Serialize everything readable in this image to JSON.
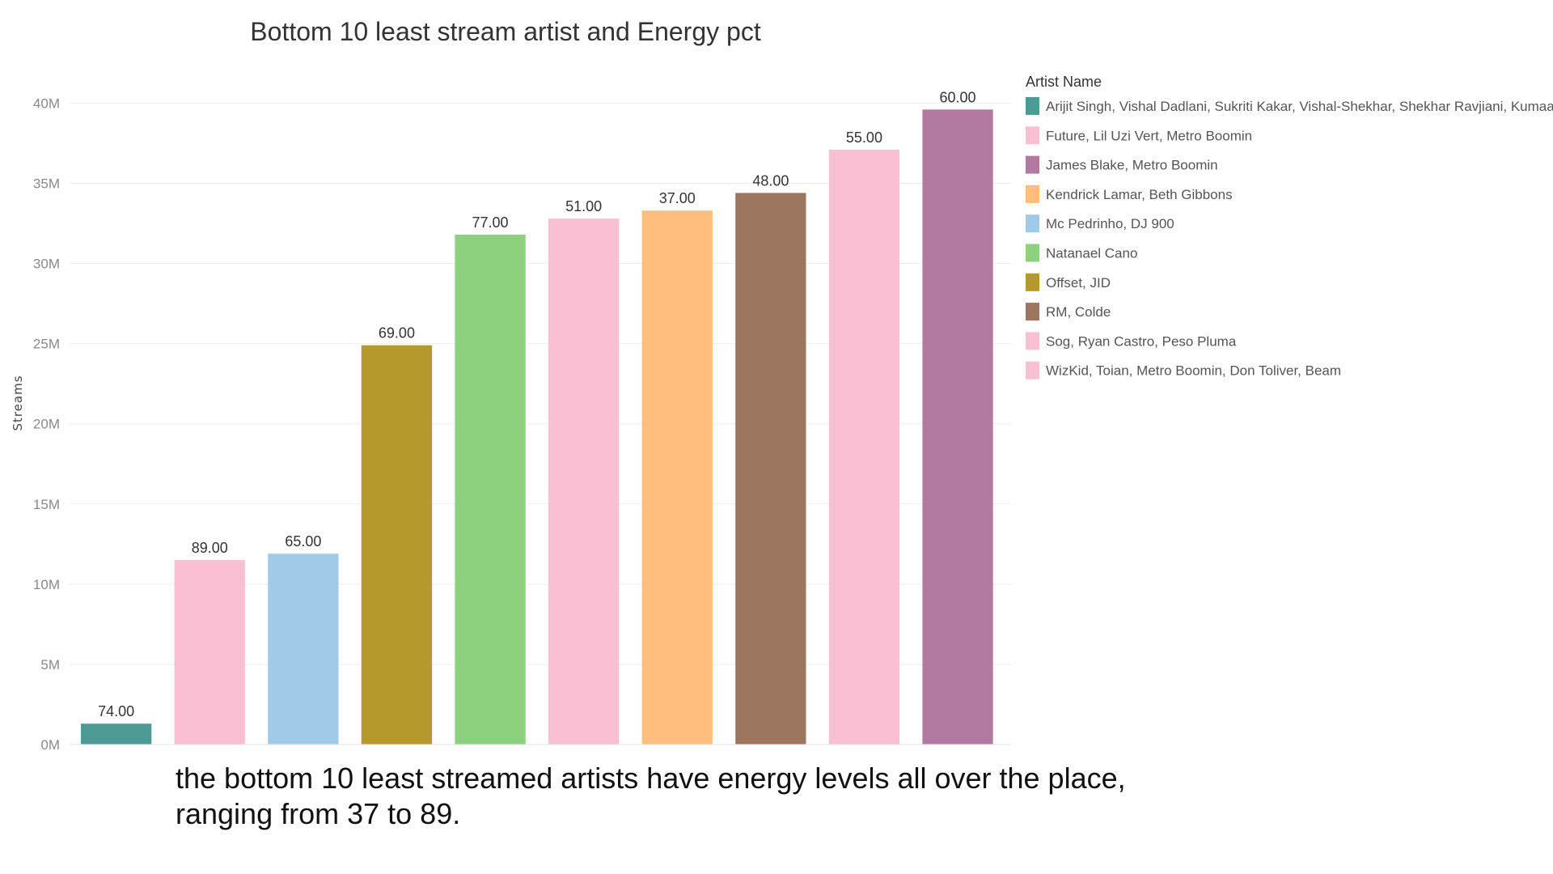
{
  "caption": {
    "line1": "the bottom 10 least streamed artists have energy levels all over the place,",
    "line2": "ranging from 37 to 89."
  },
  "chart_data": {
    "type": "bar",
    "title": "Bottom 10 least stream artist and Energy pct",
    "xlabel": "",
    "ylabel": "Streams",
    "ylim": [
      0,
      43000000
    ],
    "yticks": [
      0,
      5000000,
      10000000,
      15000000,
      20000000,
      25000000,
      30000000,
      35000000,
      40000000
    ],
    "ytick_labels": [
      "0M",
      "5M",
      "10M",
      "15M",
      "20M",
      "25M",
      "30M",
      "35M",
      "40M"
    ],
    "grid": true,
    "legend_title": "Artist Name",
    "legend_position": "right",
    "legend": [
      {
        "name": "Arijit Singh, Vishal Dadlani, Sukriti Kakar, Vishal-Shekhar, Shekhar Ravjiani, Kumaar",
        "color": "#4e9a95"
      },
      {
        "name": "Future, Lil Uzi Vert, Metro Boomin",
        "color": "#f9c0d3"
      },
      {
        "name": "James Blake, Metro Boomin",
        "color": "#b27aa1"
      },
      {
        "name": "Kendrick Lamar, Beth Gibbons",
        "color": "#ffbe7d"
      },
      {
        "name": "Mc Pedrinho, DJ 900",
        "color": "#a0cbe8"
      },
      {
        "name": "Natanael Cano",
        "color": "#8cd17d"
      },
      {
        "name": "Offset, JID",
        "color": "#b6992d"
      },
      {
        "name": "RM, Colde",
        "color": "#9d7660"
      },
      {
        "name": "Sog, Ryan Castro, Peso Pluma",
        "color": "#f9c0d3"
      },
      {
        "name": "WizKid, Toian, Metro Boomin, Don Toliver, Beam",
        "color": "#f9c0d3"
      }
    ],
    "bars": [
      {
        "artist": "Arijit Singh, Vishal Dadlani, Sukriti Kakar, Vishal-Shekhar, Shekhar Ravjiani, Kumaar",
        "streams": 1300000,
        "energy_label": "74.00",
        "color": "#4e9a95"
      },
      {
        "artist": "Future, Lil Uzi Vert, Metro Boomin",
        "streams": 11500000,
        "energy_label": "89.00",
        "color": "#f9c0d3"
      },
      {
        "artist": "Mc Pedrinho, DJ 900",
        "streams": 11900000,
        "energy_label": "65.00",
        "color": "#a0cbe8"
      },
      {
        "artist": "Offset, JID",
        "streams": 24900000,
        "energy_label": "69.00",
        "color": "#b6992d"
      },
      {
        "artist": "Natanael Cano",
        "streams": 31800000,
        "energy_label": "77.00",
        "color": "#8cd17d"
      },
      {
        "artist": "WizKid, Toian, Metro Boomin, Don Toliver, Beam",
        "streams": 32800000,
        "energy_label": "51.00",
        "color": "#f9c0d3"
      },
      {
        "artist": "Kendrick Lamar, Beth Gibbons",
        "streams": 33300000,
        "energy_label": "37.00",
        "color": "#ffbe7d"
      },
      {
        "artist": "RM, Colde",
        "streams": 34400000,
        "energy_label": "48.00",
        "color": "#9d7660"
      },
      {
        "artist": "Sog, Ryan Castro, Peso Pluma",
        "streams": 37100000,
        "energy_label": "55.00",
        "color": "#f9c0d3"
      },
      {
        "artist": "James Blake, Metro Boomin",
        "streams": 39600000,
        "energy_label": "60.00",
        "color": "#b27aa1"
      }
    ]
  }
}
